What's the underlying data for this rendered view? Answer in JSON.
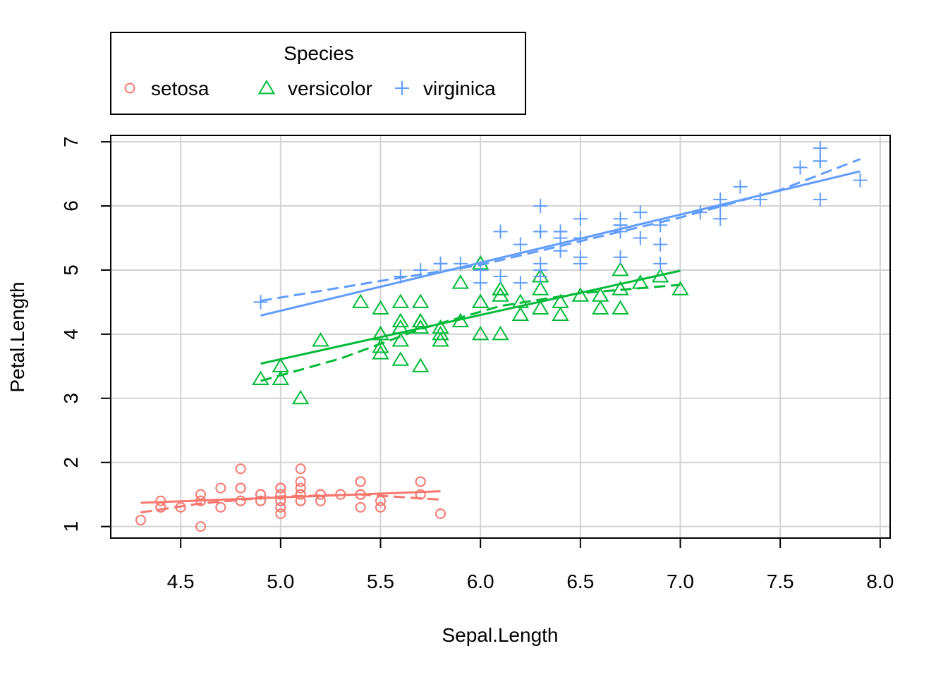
{
  "chart_data": {
    "type": "scatter",
    "xlabel": "Sepal.Length",
    "ylabel": "Petal.Length",
    "xlim": [
      4.15,
      8.05
    ],
    "ylim": [
      0.82,
      7.1
    ],
    "xticks": [
      "4.5",
      "5.0",
      "5.5",
      "6.0",
      "6.5",
      "7.0",
      "7.5",
      "8.0"
    ],
    "yticks": [
      "1",
      "2",
      "3",
      "4",
      "5",
      "6",
      "7"
    ],
    "grid": true,
    "legend": {
      "title": "Species",
      "placement": "top-left, above plot"
    },
    "series": [
      {
        "name": "setosa",
        "color": "#F8766D",
        "marker": "circle",
        "points": [
          [
            5.1,
            1.4
          ],
          [
            4.9,
            1.4
          ],
          [
            4.7,
            1.3
          ],
          [
            4.6,
            1.5
          ],
          [
            5.0,
            1.4
          ],
          [
            5.4,
            1.7
          ],
          [
            4.6,
            1.4
          ],
          [
            5.0,
            1.5
          ],
          [
            4.4,
            1.4
          ],
          [
            4.9,
            1.5
          ],
          [
            5.4,
            1.5
          ],
          [
            4.8,
            1.6
          ],
          [
            4.8,
            1.4
          ],
          [
            4.3,
            1.1
          ],
          [
            5.8,
            1.2
          ],
          [
            5.7,
            1.5
          ],
          [
            5.4,
            1.3
          ],
          [
            5.1,
            1.4
          ],
          [
            5.7,
            1.7
          ],
          [
            5.1,
            1.5
          ],
          [
            5.4,
            1.7
          ],
          [
            5.1,
            1.5
          ],
          [
            4.6,
            1.0
          ],
          [
            5.1,
            1.7
          ],
          [
            4.8,
            1.9
          ],
          [
            5.0,
            1.6
          ],
          [
            5.0,
            1.6
          ],
          [
            5.2,
            1.5
          ],
          [
            5.2,
            1.4
          ],
          [
            4.7,
            1.6
          ],
          [
            4.8,
            1.6
          ],
          [
            5.4,
            1.5
          ],
          [
            5.2,
            1.5
          ],
          [
            5.5,
            1.4
          ],
          [
            4.9,
            1.5
          ],
          [
            5.0,
            1.2
          ],
          [
            5.5,
            1.3
          ],
          [
            4.9,
            1.4
          ],
          [
            4.4,
            1.3
          ],
          [
            5.1,
            1.5
          ],
          [
            5.0,
            1.3
          ],
          [
            4.5,
            1.3
          ],
          [
            4.4,
            1.3
          ],
          [
            5.0,
            1.6
          ],
          [
            5.1,
            1.9
          ],
          [
            4.8,
            1.4
          ],
          [
            5.1,
            1.6
          ],
          [
            4.6,
            1.4
          ],
          [
            5.3,
            1.5
          ],
          [
            5.0,
            1.4
          ]
        ],
        "fit_line": [
          [
            4.3,
            1.37
          ],
          [
            5.8,
            1.55
          ]
        ],
        "smooth": [
          [
            4.3,
            1.22
          ],
          [
            4.6,
            1.36
          ],
          [
            5.0,
            1.47
          ],
          [
            5.4,
            1.5
          ],
          [
            5.8,
            1.42
          ]
        ]
      },
      {
        "name": "versicolor",
        "color": "#00BA38",
        "marker": "triangle",
        "points": [
          [
            7.0,
            4.7
          ],
          [
            6.4,
            4.5
          ],
          [
            6.9,
            4.9
          ],
          [
            5.5,
            4.0
          ],
          [
            6.5,
            4.6
          ],
          [
            5.7,
            4.5
          ],
          [
            6.3,
            4.7
          ],
          [
            4.9,
            3.3
          ],
          [
            6.6,
            4.6
          ],
          [
            5.2,
            3.9
          ],
          [
            5.0,
            3.5
          ],
          [
            5.9,
            4.2
          ],
          [
            6.0,
            4.0
          ],
          [
            6.1,
            4.7
          ],
          [
            5.6,
            3.6
          ],
          [
            6.7,
            4.4
          ],
          [
            5.6,
            4.5
          ],
          [
            5.8,
            4.1
          ],
          [
            6.2,
            4.5
          ],
          [
            5.6,
            3.9
          ],
          [
            5.9,
            4.8
          ],
          [
            6.1,
            4.0
          ],
          [
            6.3,
            4.9
          ],
          [
            6.1,
            4.7
          ],
          [
            6.4,
            4.3
          ],
          [
            6.6,
            4.4
          ],
          [
            6.8,
            4.8
          ],
          [
            6.7,
            5.0
          ],
          [
            6.0,
            4.5
          ],
          [
            5.7,
            3.5
          ],
          [
            5.5,
            3.8
          ],
          [
            5.5,
            3.7
          ],
          [
            5.8,
            3.9
          ],
          [
            6.0,
            5.1
          ],
          [
            5.4,
            4.5
          ],
          [
            6.0,
            4.5
          ],
          [
            6.7,
            4.7
          ],
          [
            6.3,
            4.4
          ],
          [
            5.6,
            4.1
          ],
          [
            5.5,
            4.0
          ],
          [
            5.5,
            4.4
          ],
          [
            6.1,
            4.6
          ],
          [
            5.8,
            4.0
          ],
          [
            5.0,
            3.3
          ],
          [
            5.6,
            4.2
          ],
          [
            5.7,
            4.2
          ],
          [
            5.7,
            4.2
          ],
          [
            6.2,
            4.3
          ],
          [
            5.1,
            3.0
          ],
          [
            5.7,
            4.1
          ]
        ],
        "fit_line": [
          [
            4.9,
            3.54
          ],
          [
            7.0,
            4.99
          ]
        ],
        "smooth": [
          [
            4.9,
            3.27
          ],
          [
            5.3,
            3.62
          ],
          [
            5.7,
            4.08
          ],
          [
            6.1,
            4.44
          ],
          [
            6.5,
            4.64
          ],
          [
            7.0,
            4.77
          ]
        ]
      },
      {
        "name": "virginica",
        "color": "#619CFF",
        "marker": "plus",
        "points": [
          [
            6.3,
            6.0
          ],
          [
            5.8,
            5.1
          ],
          [
            7.1,
            5.9
          ],
          [
            6.3,
            5.6
          ],
          [
            6.5,
            5.8
          ],
          [
            7.6,
            6.6
          ],
          [
            4.9,
            4.5
          ],
          [
            7.3,
            6.3
          ],
          [
            6.7,
            5.8
          ],
          [
            7.2,
            6.1
          ],
          [
            6.5,
            5.1
          ],
          [
            6.4,
            5.3
          ],
          [
            6.8,
            5.5
          ],
          [
            5.7,
            5.0
          ],
          [
            5.8,
            5.1
          ],
          [
            6.4,
            5.3
          ],
          [
            6.5,
            5.5
          ],
          [
            7.7,
            6.7
          ],
          [
            7.7,
            6.9
          ],
          [
            6.0,
            5.0
          ],
          [
            6.9,
            5.7
          ],
          [
            5.6,
            4.9
          ],
          [
            7.7,
            6.7
          ],
          [
            6.3,
            4.9
          ],
          [
            6.7,
            5.7
          ],
          [
            7.2,
            6.0
          ],
          [
            6.2,
            4.8
          ],
          [
            6.1,
            4.9
          ],
          [
            6.4,
            5.6
          ],
          [
            7.2,
            5.8
          ],
          [
            7.4,
            6.1
          ],
          [
            7.9,
            6.4
          ],
          [
            6.4,
            5.6
          ],
          [
            6.3,
            5.1
          ],
          [
            6.1,
            5.6
          ],
          [
            7.7,
            6.1
          ],
          [
            6.3,
            5.6
          ],
          [
            6.4,
            5.5
          ],
          [
            6.0,
            4.8
          ],
          [
            6.9,
            5.4
          ],
          [
            6.7,
            5.6
          ],
          [
            6.9,
            5.1
          ],
          [
            5.8,
            5.1
          ],
          [
            6.8,
            5.9
          ],
          [
            6.7,
            5.7
          ],
          [
            6.7,
            5.2
          ],
          [
            6.3,
            5.0
          ],
          [
            6.5,
            5.2
          ],
          [
            6.2,
            5.4
          ],
          [
            5.9,
            5.1
          ]
        ],
        "fit_line": [
          [
            4.9,
            4.29
          ],
          [
            7.9,
            6.54
          ]
        ],
        "smooth": [
          [
            4.9,
            4.52
          ],
          [
            5.5,
            4.83
          ],
          [
            6.0,
            5.08
          ],
          [
            6.5,
            5.45
          ],
          [
            7.0,
            5.82
          ],
          [
            7.5,
            6.25
          ],
          [
            7.9,
            6.73
          ]
        ]
      }
    ]
  }
}
